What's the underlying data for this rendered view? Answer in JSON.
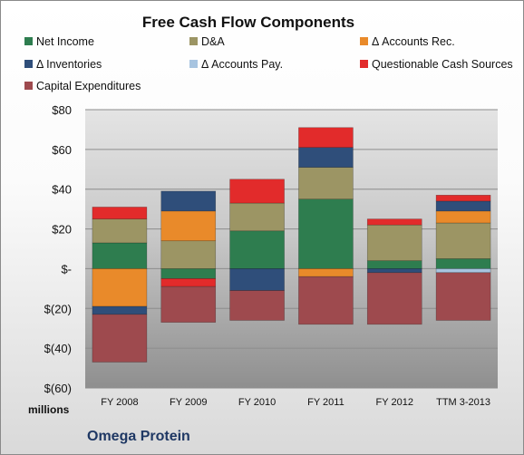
{
  "chart_data": {
    "type": "bar",
    "stacked": true,
    "title": "Free Cash Flow Components",
    "unit_label": "millions",
    "categories": [
      "FY 2008",
      "FY 2009",
      "FY 2010",
      "FY 2011",
      "FY 2012",
      "TTM 3-2013"
    ],
    "ylim": [
      -60,
      80
    ],
    "yticks": [
      "$80",
      "$60",
      "$40",
      "$20",
      "$-",
      "$(20)",
      "$(40)",
      "$(60)"
    ],
    "ytick_values": [
      80,
      60,
      40,
      20,
      0,
      -20,
      -40,
      -60
    ],
    "grid": true,
    "legend_position": "top",
    "series": [
      {
        "name": "Net Income",
        "color": "#2e7d4f",
        "values": [
          13,
          -5,
          19,
          35,
          4,
          5
        ]
      },
      {
        "name": "D&A",
        "color": "#9c9564",
        "values": [
          12,
          14,
          14,
          16,
          18,
          18
        ]
      },
      {
        "name": "Δ Accounts Rec.",
        "color": "#e98a2a",
        "values": [
          -19,
          15,
          0,
          -4,
          0,
          6
        ]
      },
      {
        "name": "Δ Inventories",
        "color": "#2f4e7a",
        "values": [
          -4,
          10,
          -11,
          10,
          -2,
          5
        ]
      },
      {
        "name": "Δ Accounts Pay.",
        "color": "#a7c4e0",
        "values": [
          0,
          0,
          0,
          0,
          0,
          -2
        ]
      },
      {
        "name": "Questionable Cash Sources",
        "color": "#e22b2b",
        "values": [
          6,
          -4,
          12,
          10,
          3,
          3
        ]
      },
      {
        "name": "Capital Expenditures",
        "color": "#9e4a4e",
        "values": [
          -24,
          -18,
          -15,
          -24,
          -26,
          -24
        ]
      }
    ]
  },
  "footer": {
    "company": "Omega Protein"
  }
}
